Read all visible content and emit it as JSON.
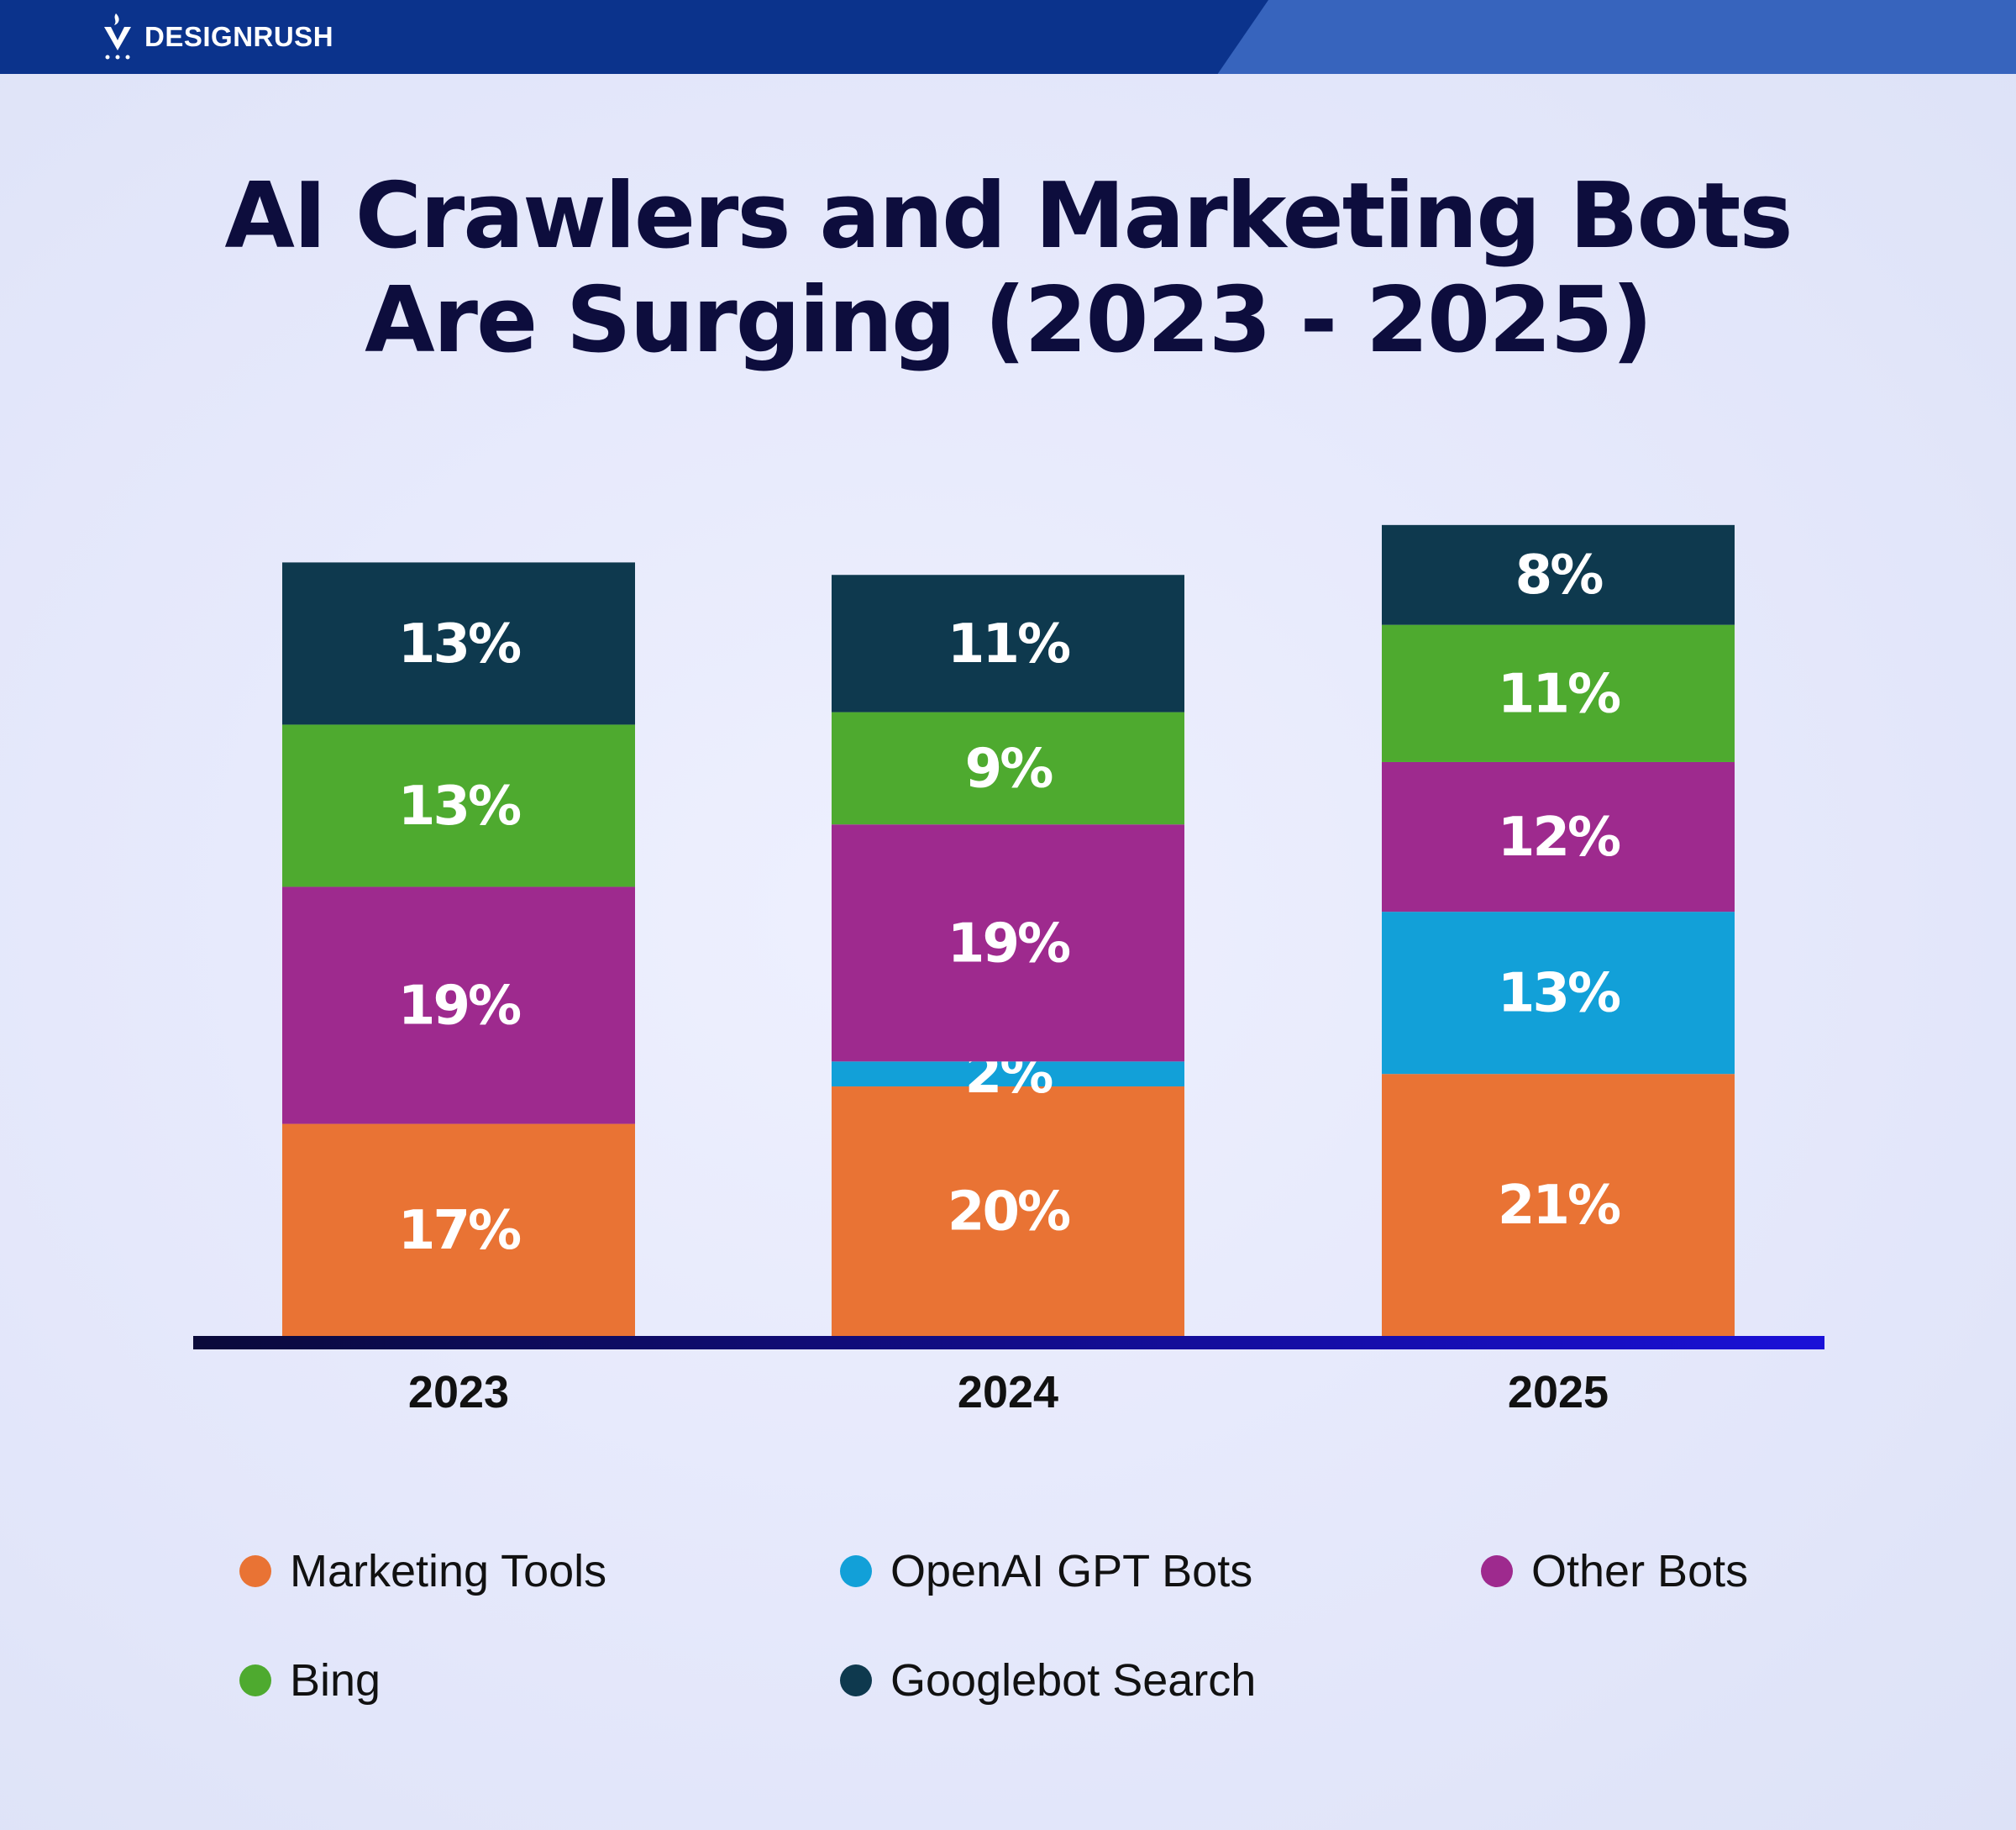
{
  "brand": {
    "name": "DESIGNRUSH"
  },
  "chart_data": {
    "type": "bar",
    "stacked": true,
    "title": "AI Crawlers and Marketing Bots Are Surging (2023 - 2025)",
    "title_lines": [
      "AI Crawlers and Marketing Bots",
      "Are Surging (2023 - 2025)"
    ],
    "categories": [
      "2023",
      "2024",
      "2025"
    ],
    "value_suffix": "%",
    "ylim": [
      0,
      66
    ],
    "series": [
      {
        "name": "Marketing Tools",
        "color": "#e97334",
        "values": [
          17,
          20,
          21
        ]
      },
      {
        "name": "OpenAI GPT Bots",
        "color": "#12a0d8",
        "values": [
          0,
          2,
          13
        ]
      },
      {
        "name": "Other Bots",
        "color": "#9e2a8e",
        "values": [
          19,
          19,
          12
        ]
      },
      {
        "name": "Bing",
        "color": "#4eaa2f",
        "values": [
          13,
          9,
          11
        ]
      },
      {
        "name": "Googlebot Search",
        "color": "#0e394e",
        "values": [
          13,
          11,
          8
        ]
      }
    ],
    "legend_position": "bottom",
    "grid": false
  }
}
